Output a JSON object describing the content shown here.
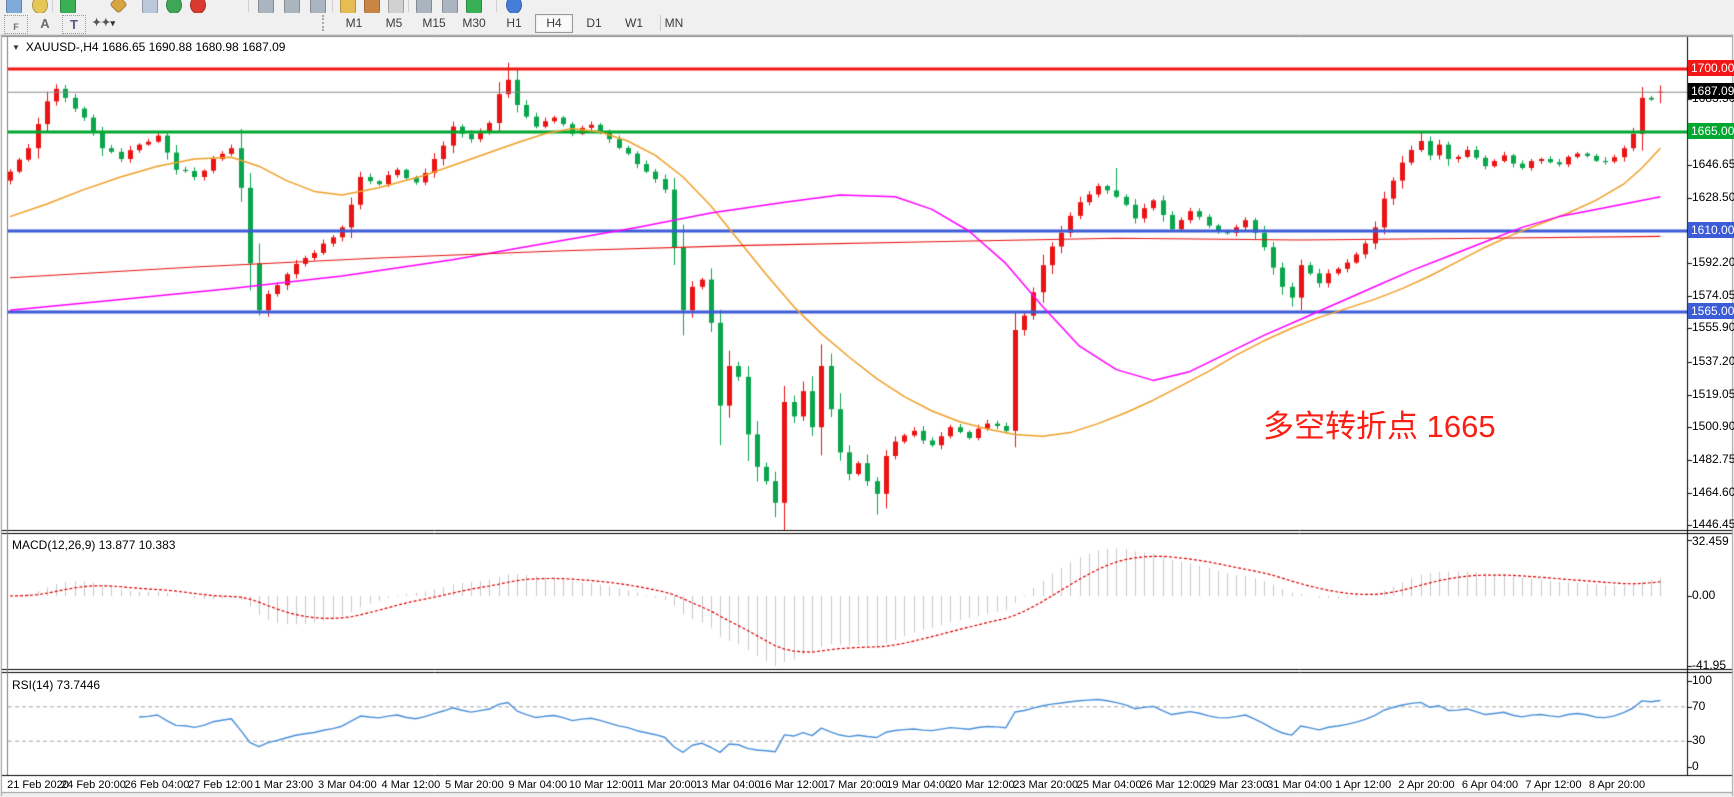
{
  "toolbar": {
    "top_icons": [
      {
        "name": "new-window-icon",
        "color": "#7ba7d7",
        "shape": "sq"
      },
      {
        "name": "zoom-icon",
        "color": "#e6c44e",
        "shape": "circle"
      },
      {
        "name": "separator",
        "color": "",
        "shape": "sep"
      },
      {
        "name": "add-chart-icon",
        "color": "#2fae4d",
        "shape": "sq"
      },
      {
        "name": "diamond-tool-icon",
        "color": "#d8a23a",
        "shape": "diamond"
      },
      {
        "name": "panel-icon",
        "color": "#b9c6da",
        "shape": "sq"
      },
      {
        "name": "run-icon",
        "color": "#35a34f",
        "shape": "circle"
      },
      {
        "name": "stop-icon",
        "color": "#d83025",
        "shape": "circle"
      },
      {
        "name": "separator",
        "color": "",
        "shape": "sep"
      },
      {
        "name": "autoscroll-icon",
        "color": "#a8b2bd",
        "shape": "sq"
      },
      {
        "name": "chart-shift-icon",
        "color": "#a8b2bd",
        "shape": "sq"
      },
      {
        "name": "grid-shift-icon",
        "color": "#a8b2bd",
        "shape": "sq"
      },
      {
        "name": "separator",
        "color": "",
        "shape": "sep"
      },
      {
        "name": "pencil-icon",
        "color": "#e6bb4a",
        "shape": "sq"
      },
      {
        "name": "crayon-icon",
        "color": "#c9803b",
        "shape": "sq"
      },
      {
        "name": "palette-icon",
        "color": "#d0d0d0",
        "shape": "sq"
      },
      {
        "name": "separator",
        "color": "",
        "shape": "sep"
      },
      {
        "name": "h-arrow-left-icon",
        "color": "#a8b2bd",
        "shape": "sq"
      },
      {
        "name": "h-arrow-right-icon",
        "color": "#a8b2bd",
        "shape": "sq"
      },
      {
        "name": "add-plus-icon",
        "color": "#2fae4d",
        "shape": "sq"
      },
      {
        "name": "separator",
        "color": "",
        "shape": "sep"
      },
      {
        "name": "info-icon",
        "color": "#3b78d8",
        "shape": "circle"
      }
    ],
    "tool_icons_row2": [
      {
        "name": "grid-snap-icon",
        "glyph": "F"
      },
      {
        "name": "text-label-icon",
        "glyph": "A"
      },
      {
        "name": "text-box-icon",
        "glyph": "T"
      },
      {
        "name": "shapes-icon",
        "glyph": "✦▾"
      }
    ],
    "timeframes": [
      {
        "label": "M1",
        "active": false
      },
      {
        "label": "M5",
        "active": false
      },
      {
        "label": "M15",
        "active": false
      },
      {
        "label": "M30",
        "active": false
      },
      {
        "label": "H1",
        "active": false
      },
      {
        "label": "H4",
        "active": true
      },
      {
        "label": "D1",
        "active": false
      },
      {
        "label": "W1",
        "active": false
      },
      {
        "label": "MN",
        "active": false
      }
    ]
  },
  "chart": {
    "title": "XAUUSD-,H4  1686.65 1690.88 1680.98 1687.09",
    "symbol": "XAUUSD-",
    "timeframe": "H4"
  },
  "annotation": {
    "text": "多空转折点 1665",
    "color": "#fa1e14"
  },
  "indicators": {
    "macd_pane_label": "MACD(12,26,9) 13.877 10.383",
    "rsi_pane_label": "RSI(14) 73.7446"
  },
  "axes": {
    "price_labels": [
      {
        "text": "1700.00",
        "price": 1700,
        "box": "red"
      },
      {
        "text": "1687.09",
        "price": 1687.09,
        "box": "black"
      },
      {
        "text": "1683.50",
        "price": 1683.5,
        "box": null
      },
      {
        "text": "1665.00",
        "price": 1665,
        "box": "green"
      },
      {
        "text": "1646.65",
        "price": 1646.65,
        "box": null
      },
      {
        "text": "1628.50",
        "price": 1628.5,
        "box": null
      },
      {
        "text": "1610.00",
        "price": 1610,
        "box": "blue"
      },
      {
        "text": "1592.20",
        "price": 1592.2,
        "box": null
      },
      {
        "text": "1574.05",
        "price": 1574.05,
        "box": null
      },
      {
        "text": "1565.00",
        "price": 1565,
        "box": "blue"
      },
      {
        "text": "1555.90",
        "price": 1555.9,
        "box": null
      },
      {
        "text": "1537.20",
        "price": 1537.2,
        "box": null
      },
      {
        "text": "1519.05",
        "price": 1519.05,
        "box": null
      },
      {
        "text": "1500.90",
        "price": 1500.9,
        "box": null
      },
      {
        "text": "1482.75",
        "price": 1482.75,
        "box": null
      },
      {
        "text": "1464.60",
        "price": 1464.6,
        "box": null
      },
      {
        "text": "1446.45",
        "price": 1446.45,
        "box": null
      }
    ],
    "macd_labels": [
      "32.459",
      "0.00",
      "-41.95"
    ],
    "rsi_labels": [
      "100",
      "70",
      "30",
      "0"
    ],
    "dates": [
      "21 Feb 2020",
      "24 Feb 20:00",
      "26 Feb 04:00",
      "27 Feb 12:00",
      "1 Mar 23:00",
      "3 Mar 04:00",
      "4 Mar 12:00",
      "5 Mar 20:00",
      "9 Mar 04:00",
      "10 Mar 12:00",
      "11 Mar 20:00",
      "13 Mar 04:00",
      "16 Mar 12:00",
      "17 Mar 20:00",
      "19 Mar 04:00",
      "20 Mar 12:00",
      "23 Mar 20:00",
      "25 Mar 04:00",
      "26 Mar 12:00",
      "29 Mar 23:00",
      "31 Mar 04:00",
      "1 Apr 12:00",
      "2 Apr 20:00",
      "6 Apr 04:00",
      "7 Apr 12:00",
      "8 Apr 20:00"
    ]
  },
  "chart_data": {
    "type": "candlestick",
    "symbol": "XAUUSD-",
    "timeframe": "H4",
    "current_ohlc": {
      "open": 1686.65,
      "high": 1690.88,
      "low": 1680.98,
      "close": 1687.09
    },
    "n_candles": 180,
    "price_range_visible": [
      1446.45,
      1711
    ],
    "up_color": "#ea1414",
    "down_color": "#0aa54d",
    "close_waypoints": [
      [
        0,
        1643
      ],
      [
        2,
        1656
      ],
      [
        4,
        1682
      ],
      [
        5,
        1689
      ],
      [
        6,
        1684
      ],
      [
        8,
        1673
      ],
      [
        10,
        1656
      ],
      [
        12,
        1650
      ],
      [
        14,
        1658
      ],
      [
        16,
        1663
      ],
      [
        18,
        1644
      ],
      [
        20,
        1640
      ],
      [
        22,
        1650
      ],
      [
        24,
        1656
      ],
      [
        25,
        1634
      ],
      [
        26,
        1592
      ],
      [
        27,
        1566
      ],
      [
        28,
        1575
      ],
      [
        30,
        1586
      ],
      [
        32,
        1595
      ],
      [
        34,
        1603
      ],
      [
        36,
        1612
      ],
      [
        38,
        1640
      ],
      [
        40,
        1636
      ],
      [
        42,
        1644
      ],
      [
        44,
        1637
      ],
      [
        46,
        1650
      ],
      [
        48,
        1668
      ],
      [
        50,
        1661
      ],
      [
        52,
        1670
      ],
      [
        53,
        1686
      ],
      [
        54,
        1694
      ],
      [
        55,
        1680
      ],
      [
        57,
        1668
      ],
      [
        59,
        1673
      ],
      [
        61,
        1664
      ],
      [
        63,
        1669
      ],
      [
        65,
        1661
      ],
      [
        67,
        1653
      ],
      [
        69,
        1643
      ],
      [
        71,
        1633
      ],
      [
        72,
        1601
      ],
      [
        73,
        1566
      ],
      [
        74,
        1579
      ],
      [
        75,
        1583
      ],
      [
        76,
        1559
      ],
      [
        77,
        1513
      ],
      [
        78,
        1535
      ],
      [
        79,
        1529
      ],
      [
        80,
        1497
      ],
      [
        81,
        1479
      ],
      [
        82,
        1471
      ],
      [
        83,
        1459
      ],
      [
        84,
        1515
      ],
      [
        85,
        1507
      ],
      [
        86,
        1521
      ],
      [
        87,
        1501
      ],
      [
        88,
        1535
      ],
      [
        89,
        1511
      ],
      [
        90,
        1487
      ],
      [
        91,
        1475
      ],
      [
        92,
        1481
      ],
      [
        93,
        1471
      ],
      [
        94,
        1464
      ],
      [
        95,
        1485
      ],
      [
        96,
        1493
      ],
      [
        98,
        1499
      ],
      [
        100,
        1491
      ],
      [
        102,
        1501
      ],
      [
        104,
        1495
      ],
      [
        106,
        1503
      ],
      [
        108,
        1499
      ],
      [
        109,
        1555
      ],
      [
        110,
        1563
      ],
      [
        112,
        1591
      ],
      [
        114,
        1609
      ],
      [
        116,
        1626
      ],
      [
        118,
        1635
      ],
      [
        120,
        1629
      ],
      [
        122,
        1617
      ],
      [
        124,
        1627
      ],
      [
        126,
        1611
      ],
      [
        128,
        1621
      ],
      [
        130,
        1613
      ],
      [
        132,
        1609
      ],
      [
        134,
        1616
      ],
      [
        136,
        1601
      ],
      [
        138,
        1579
      ],
      [
        139,
        1573
      ],
      [
        140,
        1591
      ],
      [
        142,
        1581
      ],
      [
        144,
        1589
      ],
      [
        146,
        1597
      ],
      [
        148,
        1612
      ],
      [
        149,
        1628
      ],
      [
        150,
        1638
      ],
      [
        151,
        1648
      ],
      [
        152,
        1655
      ],
      [
        153,
        1660
      ],
      [
        154,
        1652
      ],
      [
        155,
        1658
      ],
      [
        156,
        1650
      ],
      [
        158,
        1655
      ],
      [
        160,
        1646
      ],
      [
        162,
        1652
      ],
      [
        164,
        1645
      ],
      [
        166,
        1650
      ],
      [
        168,
        1647
      ],
      [
        170,
        1653
      ],
      [
        172,
        1649
      ],
      [
        174,
        1651
      ],
      [
        175,
        1656
      ],
      [
        176,
        1664
      ],
      [
        177,
        1684
      ],
      [
        178,
        1683
      ],
      [
        179,
        1687.09
      ]
    ],
    "wick_highs": {
      "5": 1691.5,
      "54": 1703.5,
      "88": 1547,
      "120": 1645,
      "153": 1664.5,
      "177": 1690,
      "179": 1690.88
    },
    "wick_lows": {
      "27": 1563,
      "83": 1451,
      "94": 1452.5,
      "139": 1568,
      "179": 1680.98
    },
    "hlines": [
      {
        "price": 1700,
        "color": "#f21616",
        "label": "1700.00",
        "width": 3
      },
      {
        "price": 1665,
        "color": "#00a830",
        "label": "1665.00",
        "width": 3
      },
      {
        "price": 1610,
        "color": "#3c5bd7",
        "label": "1610.00",
        "width": 3
      },
      {
        "price": 1565,
        "color": "#3c5bd7",
        "label": "1565.00",
        "width": 3
      }
    ],
    "current_price_line": {
      "price": 1687.09,
      "color": "#8a8a8a",
      "label": "1687.09"
    },
    "moving_averages": [
      {
        "name": "ma-fast",
        "color": "#f0a028",
        "width": 1.5,
        "waypoints": [
          [
            0,
            1618
          ],
          [
            4,
            1625
          ],
          [
            8,
            1633
          ],
          [
            12,
            1640
          ],
          [
            16,
            1646
          ],
          [
            20,
            1650
          ],
          [
            24,
            1651
          ],
          [
            27,
            1646
          ],
          [
            30,
            1638
          ],
          [
            33,
            1632
          ],
          [
            36,
            1630
          ],
          [
            40,
            1634
          ],
          [
            45,
            1641
          ],
          [
            50,
            1650
          ],
          [
            55,
            1659
          ],
          [
            58,
            1664
          ],
          [
            61,
            1667
          ],
          [
            64,
            1665
          ],
          [
            67,
            1660
          ],
          [
            70,
            1652
          ],
          [
            73,
            1640
          ],
          [
            76,
            1624
          ],
          [
            79,
            1605
          ],
          [
            82,
            1586
          ],
          [
            85,
            1568
          ],
          [
            88,
            1553
          ],
          [
            91,
            1540
          ],
          [
            94,
            1528
          ],
          [
            97,
            1518
          ],
          [
            100,
            1510
          ],
          [
            103,
            1504
          ],
          [
            106,
            1500
          ],
          [
            109,
            1497
          ],
          [
            112,
            1496
          ],
          [
            115,
            1498
          ],
          [
            118,
            1503
          ],
          [
            121,
            1509
          ],
          [
            124,
            1516
          ],
          [
            127,
            1524
          ],
          [
            130,
            1532
          ],
          [
            133,
            1541
          ],
          [
            136,
            1549
          ],
          [
            139,
            1556
          ],
          [
            142,
            1562
          ],
          [
            145,
            1567
          ],
          [
            148,
            1572
          ],
          [
            151,
            1578
          ],
          [
            154,
            1585
          ],
          [
            157,
            1593
          ],
          [
            160,
            1601
          ],
          [
            163,
            1608
          ],
          [
            166,
            1614
          ],
          [
            169,
            1620
          ],
          [
            172,
            1627
          ],
          [
            175,
            1636
          ],
          [
            177,
            1645
          ],
          [
            179,
            1656
          ]
        ]
      },
      {
        "name": "ma-medium",
        "color": "#ff00ff",
        "width": 1.5,
        "waypoints": [
          [
            0,
            1566
          ],
          [
            12,
            1572
          ],
          [
            24,
            1578
          ],
          [
            36,
            1585
          ],
          [
            48,
            1594
          ],
          [
            58,
            1603
          ],
          [
            68,
            1612
          ],
          [
            76,
            1620
          ],
          [
            84,
            1626
          ],
          [
            90,
            1630
          ],
          [
            96,
            1629
          ],
          [
            100,
            1622
          ],
          [
            104,
            1610
          ],
          [
            108,
            1592
          ],
          [
            112,
            1568
          ],
          [
            116,
            1546
          ],
          [
            120,
            1533
          ],
          [
            124,
            1527
          ],
          [
            128,
            1532
          ],
          [
            132,
            1542
          ],
          [
            136,
            1552
          ],
          [
            140,
            1561
          ],
          [
            144,
            1570
          ],
          [
            148,
            1579
          ],
          [
            152,
            1588
          ],
          [
            156,
            1596
          ],
          [
            160,
            1604
          ],
          [
            164,
            1612
          ],
          [
            168,
            1618
          ],
          [
            172,
            1622
          ],
          [
            176,
            1626
          ],
          [
            179,
            1629
          ]
        ]
      },
      {
        "name": "ma-slow",
        "color": "#e81414",
        "width": 1.1,
        "waypoints": [
          [
            0,
            1584
          ],
          [
            20,
            1590
          ],
          [
            40,
            1595
          ],
          [
            60,
            1599
          ],
          [
            80,
            1602
          ],
          [
            100,
            1604
          ],
          [
            120,
            1606
          ],
          [
            140,
            1605
          ],
          [
            160,
            1606
          ],
          [
            179,
            1607
          ]
        ]
      }
    ],
    "macd": {
      "label": "MACD(12,26,9)",
      "main": 13.877,
      "signal": 10.383,
      "axis_max": 32.459,
      "axis_min": -41.95,
      "params": [
        12,
        26,
        9
      ],
      "hist_color": "#c9c9c9",
      "signal_color": "#e00000"
    },
    "rsi": {
      "label": "RSI(14)",
      "value": 73.7446,
      "period": 14,
      "levels": [
        30,
        70
      ],
      "range": [
        0,
        100
      ],
      "color": "#4a90d9"
    }
  }
}
